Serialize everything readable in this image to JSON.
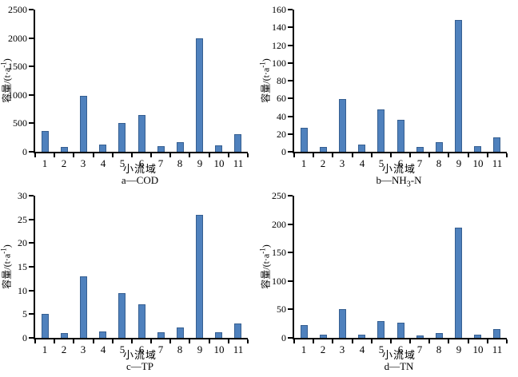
{
  "style": {
    "bar_fill": "#4f81bd",
    "bar_border": "#365f91",
    "axis_color": "#000000",
    "background": "#ffffff"
  },
  "chart_data": [
    {
      "type": "bar",
      "panel": "a",
      "title": "a—COD",
      "title_parts": {
        "pre": "a—COD",
        "sub": "",
        "post": ""
      },
      "ylabel": "容量/(t·a⁻¹)",
      "ylabel_parts": {
        "pre": "容量/(t·a",
        "sup": "-1",
        "post": ")"
      },
      "xlabel": "小流域",
      "categories": [
        "1",
        "2",
        "3",
        "4",
        "5",
        "6",
        "7",
        "8",
        "9",
        "10",
        "11"
      ],
      "values": [
        370,
        90,
        990,
        120,
        500,
        640,
        100,
        175,
        1990,
        110,
        310
      ],
      "ylim": [
        0,
        2500
      ],
      "ytick_step": 500,
      "grid": false,
      "legend": false
    },
    {
      "type": "bar",
      "panel": "b",
      "title": "b—NH₃-N",
      "title_parts": {
        "pre": "b—NH",
        "sub": "3",
        "post": "-N"
      },
      "ylabel": "容量/(t·a⁻¹)",
      "ylabel_parts": {
        "pre": "容量/(t·a",
        "sup": "-1",
        "post": ")"
      },
      "xlabel": "小流域",
      "categories": [
        "1",
        "2",
        "3",
        "4",
        "5",
        "6",
        "7",
        "8",
        "9",
        "10",
        "11"
      ],
      "values": [
        27,
        5,
        59,
        8,
        48,
        36,
        5,
        11,
        148,
        6,
        16
      ],
      "ylim": [
        0,
        160
      ],
      "ytick_step": 20,
      "grid": false,
      "legend": false
    },
    {
      "type": "bar",
      "panel": "c",
      "title": "c—TP",
      "title_parts": {
        "pre": "c—TP",
        "sub": "",
        "post": ""
      },
      "ylabel": "容量/(t·a⁻¹)",
      "ylabel_parts": {
        "pre": "容量/(t·a",
        "sup": "-1",
        "post": ")"
      },
      "xlabel": "小流域",
      "categories": [
        "1",
        "2",
        "3",
        "4",
        "5",
        "6",
        "7",
        "8",
        "9",
        "10",
        "11"
      ],
      "values": [
        5,
        1,
        13,
        1.4,
        9.4,
        7,
        1.1,
        2.2,
        26,
        1.1,
        3
      ],
      "ylim": [
        0,
        30
      ],
      "ytick_step": 5,
      "grid": false,
      "legend": false
    },
    {
      "type": "bar",
      "panel": "d",
      "title": "d—TN",
      "title_parts": {
        "pre": "d—TN",
        "sub": "",
        "post": ""
      },
      "ylabel": "容量/(t·a⁻¹)",
      "ylabel_parts": {
        "pre": "容量/(t·a",
        "sup": "-1",
        "post": ")"
      },
      "xlabel": "小流域",
      "categories": [
        "1",
        "2",
        "3",
        "4",
        "5",
        "6",
        "7",
        "8",
        "9",
        "10",
        "11"
      ],
      "values": [
        23,
        5,
        50,
        5,
        29,
        27,
        4,
        9,
        194,
        6,
        15
      ],
      "ylim": [
        0,
        250
      ],
      "ytick_step": 50,
      "grid": false,
      "legend": false
    }
  ]
}
